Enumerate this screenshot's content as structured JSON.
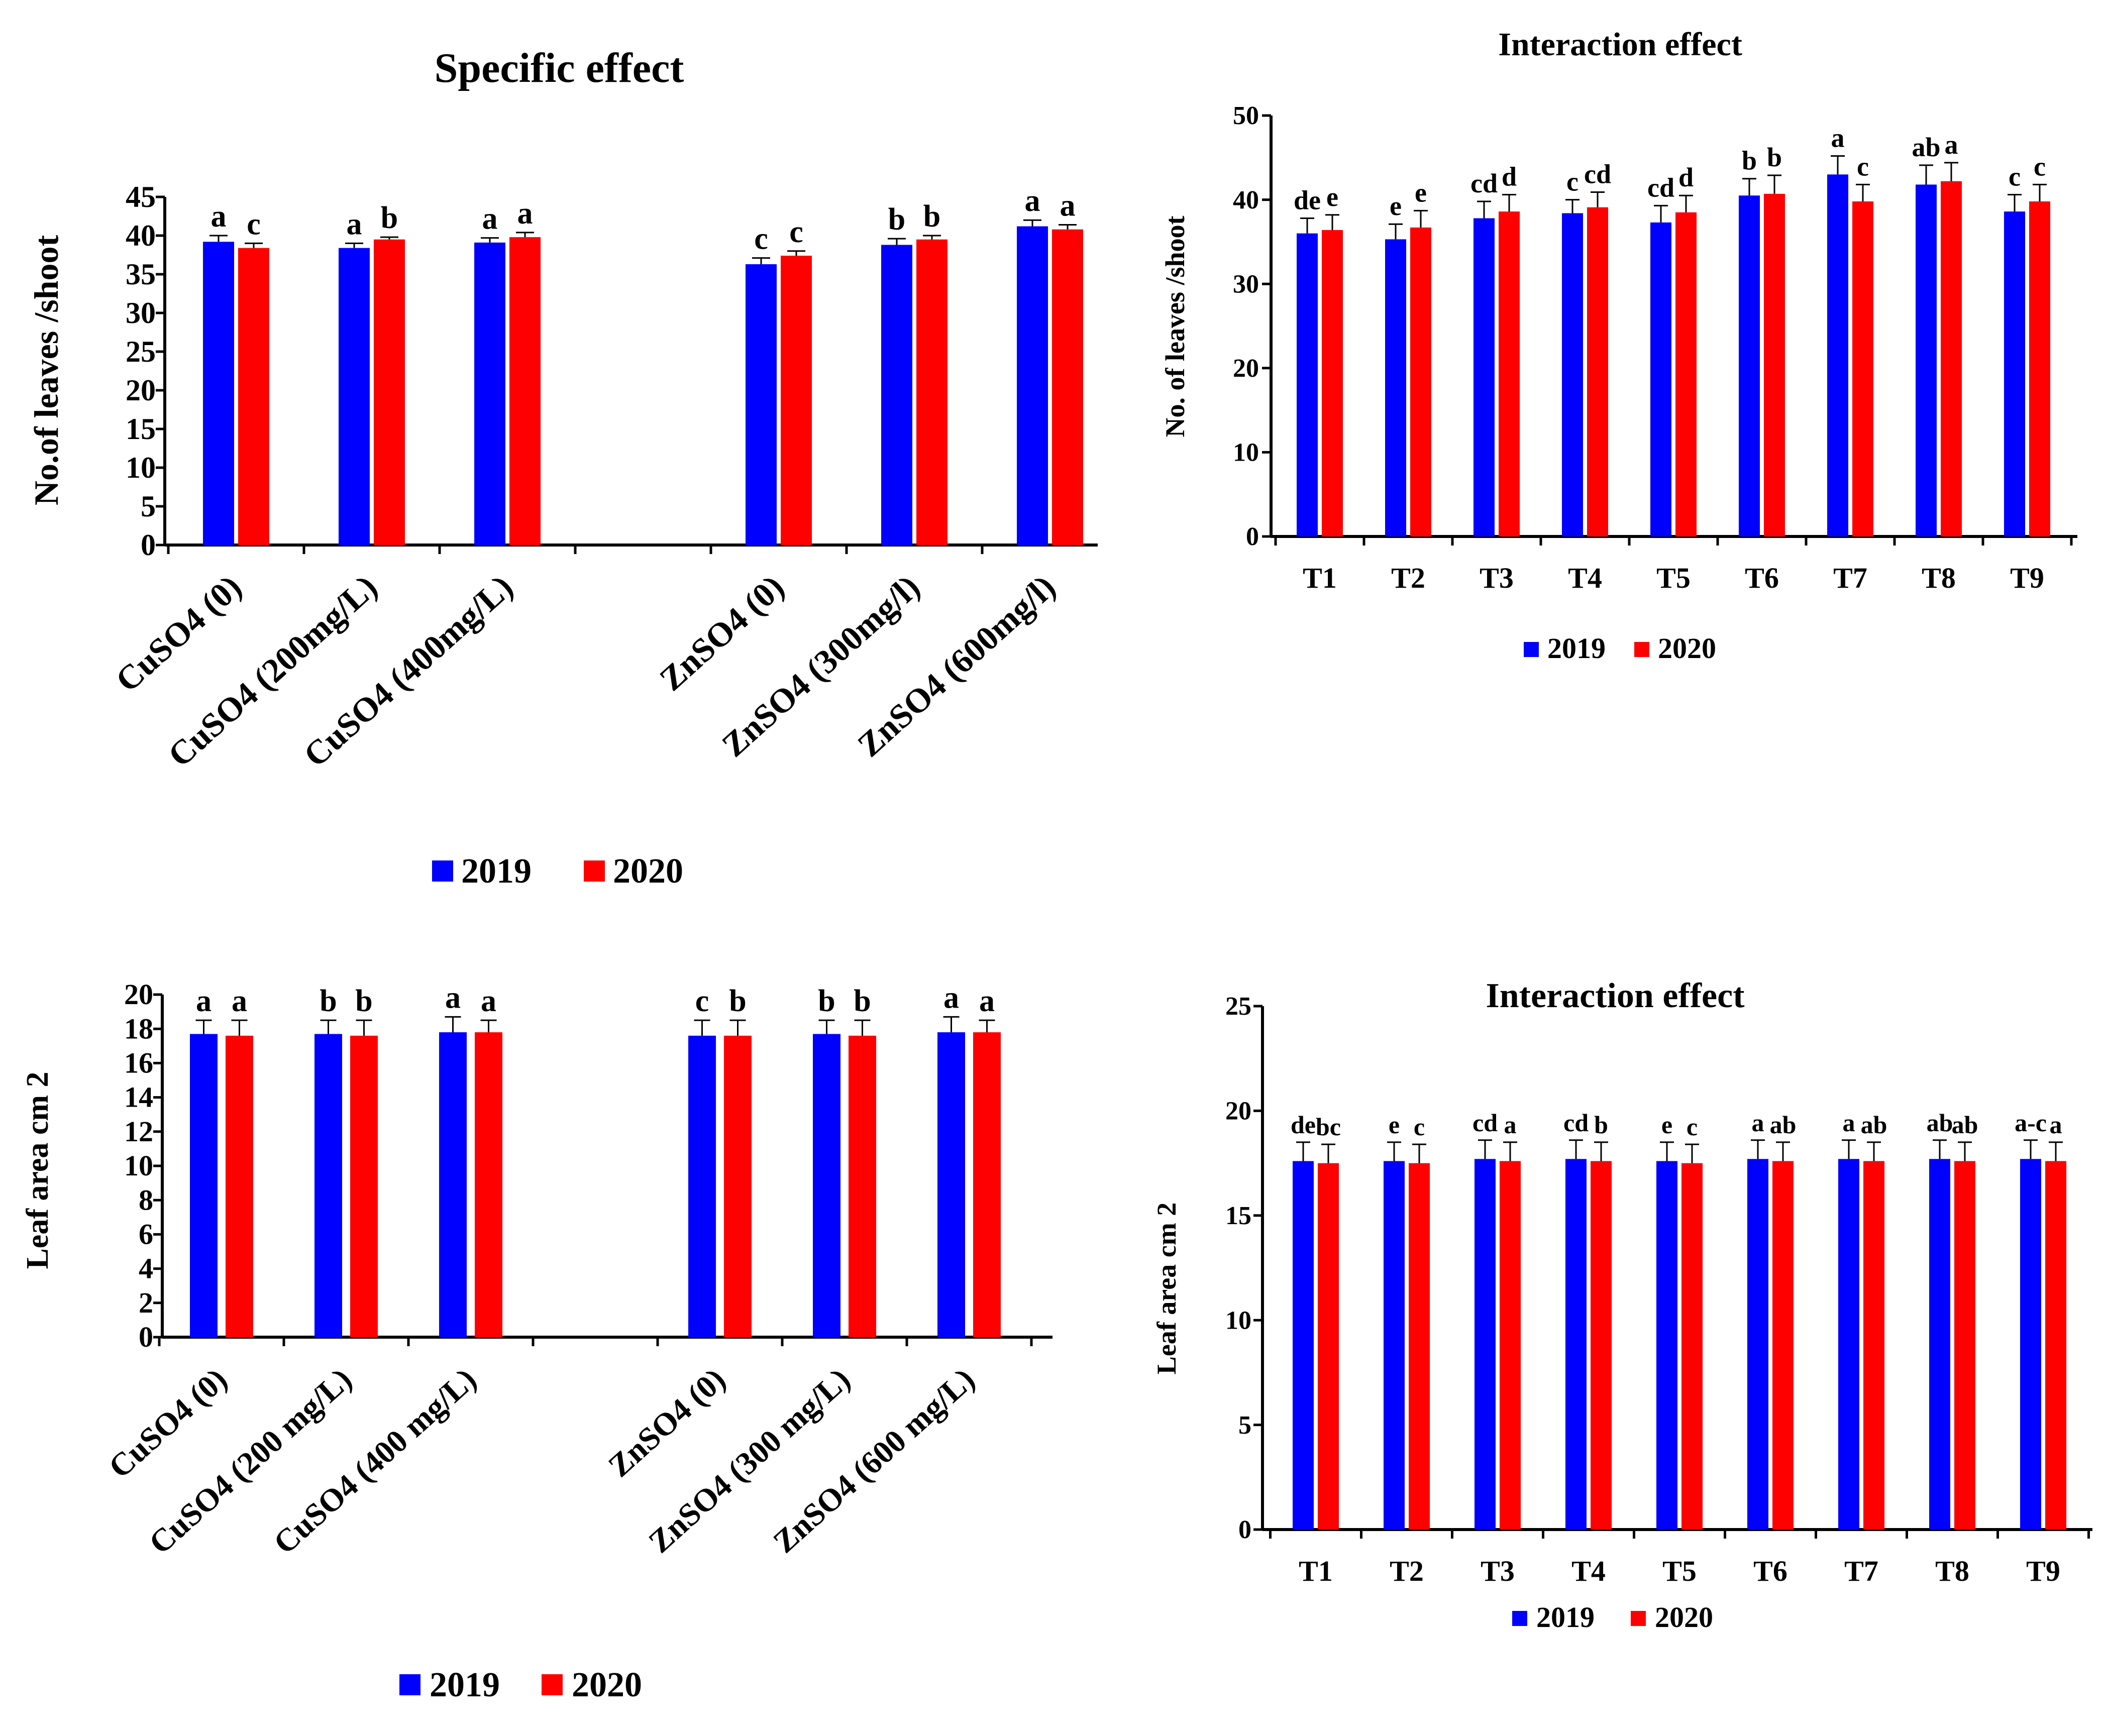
{
  "colors": {
    "series_2019": "#0000FF",
    "series_2020": "#FF0000",
    "axis": "#000000"
  },
  "chart_data": [
    {
      "id": "chart1",
      "type": "bar",
      "title": "Specific effect",
      "xlabel": "",
      "ylabel": "No.of leaves /shoot",
      "ylim": [
        0,
        45
      ],
      "yticks": [
        0,
        5,
        10,
        15,
        20,
        25,
        30,
        35,
        40,
        45
      ],
      "grid": false,
      "legend_position": "bottom",
      "categories": [
        "CuSO4 (0)",
        "CuSO4 (200mg/L)",
        "CuSO4 (400mg/L)",
        "",
        "ZnSO4 (0)",
        "ZnSO4 (300mg/l)",
        "ZnSO4 (600mg/l)"
      ],
      "series": [
        {
          "name": "2019",
          "values": [
            39.2,
            38.4,
            39.1,
            null,
            36.3,
            38.8,
            41.2
          ],
          "errors": [
            0.8,
            0.6,
            0.6,
            null,
            0.8,
            0.8,
            0.8
          ],
          "labels": [
            "a",
            "a",
            "a",
            "",
            "c",
            "b",
            "a"
          ]
        },
        {
          "name": "2020",
          "values": [
            38.4,
            39.5,
            39.8,
            null,
            37.4,
            39.5,
            40.8
          ],
          "errors": [
            0.6,
            0.3,
            0.6,
            null,
            0.6,
            0.5,
            0.6
          ],
          "labels": [
            "c",
            "b",
            "a",
            "",
            "c",
            "b",
            "a"
          ]
        }
      ]
    },
    {
      "id": "chart2",
      "type": "bar",
      "title": "Interaction effect",
      "xlabel": "",
      "ylabel": "No. of leaves /shoot",
      "ylim": [
        0,
        50
      ],
      "yticks": [
        0,
        10,
        20,
        30,
        40,
        50
      ],
      "grid": false,
      "legend_position": "bottom",
      "categories": [
        "T1",
        "T2",
        "T3",
        "T4",
        "T5",
        "T6",
        "T7",
        "T8",
        "T9"
      ],
      "series": [
        {
          "name": "2019",
          "values": [
            36.0,
            35.3,
            37.8,
            38.4,
            37.3,
            40.5,
            43.0,
            41.8,
            38.6
          ],
          "errors": [
            1.8,
            1.8,
            2.0,
            1.6,
            2.0,
            2.0,
            2.2,
            2.3,
            2.0
          ],
          "labels": [
            "de",
            "e",
            "cd",
            "c",
            "cd",
            "b",
            "a",
            "ab",
            "c"
          ]
        },
        {
          "name": "2020",
          "values": [
            36.4,
            36.7,
            38.6,
            39.1,
            38.5,
            40.7,
            39.8,
            42.2,
            39.8
          ],
          "errors": [
            1.8,
            2.0,
            2.0,
            1.8,
            2.0,
            2.2,
            2.0,
            2.2,
            2.0
          ],
          "labels": [
            "e",
            "e",
            "d",
            "cd",
            "d",
            "b",
            "c",
            "a",
            "c"
          ]
        }
      ]
    },
    {
      "id": "chart3",
      "type": "bar",
      "title": "",
      "xlabel": "",
      "ylabel": "Leaf area cm 2",
      "ylim": [
        0,
        20
      ],
      "yticks": [
        0,
        2,
        4,
        6,
        8,
        10,
        12,
        14,
        16,
        18,
        20
      ],
      "grid": false,
      "legend_position": "bottom",
      "categories": [
        "CuSO4 (0)",
        "CuSO4 (200 mg/L)",
        "CuSO4 (400 mg/L)",
        "",
        "ZnSO4 (0)",
        "ZnSO4 (300 mg/L)",
        "ZnSO4 (600 mg/L)"
      ],
      "series": [
        {
          "name": "2019",
          "values": [
            17.7,
            17.7,
            17.8,
            null,
            17.6,
            17.7,
            17.8
          ],
          "errors": [
            0.8,
            0.8,
            0.9,
            null,
            0.9,
            0.8,
            0.9
          ],
          "labels": [
            "a",
            "b",
            "a",
            "",
            "c",
            "b",
            "a"
          ]
        },
        {
          "name": "2020",
          "values": [
            17.6,
            17.6,
            17.8,
            null,
            17.6,
            17.6,
            17.8
          ],
          "errors": [
            0.9,
            0.9,
            0.7,
            null,
            0.9,
            0.9,
            0.7
          ],
          "labels": [
            "a",
            "b",
            "a",
            "",
            "b",
            "b",
            "a"
          ]
        }
      ]
    },
    {
      "id": "chart4",
      "type": "bar",
      "title": "Interaction effect",
      "xlabel": "",
      "ylabel": "Leaf area  cm 2",
      "ylim": [
        0,
        25
      ],
      "yticks": [
        0,
        5,
        10,
        15,
        20,
        25
      ],
      "grid": false,
      "legend_position": "bottom",
      "categories": [
        "T1",
        "T2",
        "T3",
        "T4",
        "T5",
        "T6",
        "T7",
        "T8",
        "T9"
      ],
      "series": [
        {
          "name": "2019",
          "values": [
            17.6,
            17.6,
            17.7,
            17.7,
            17.6,
            17.7,
            17.7,
            17.7,
            17.7
          ],
          "errors": [
            0.9,
            0.9,
            0.9,
            0.9,
            0.9,
            0.9,
            0.9,
            0.9,
            0.9
          ],
          "labels": [
            "de",
            "e",
            "cd",
            "cd",
            "e",
            "a",
            "a",
            "ab",
            "a-c"
          ]
        },
        {
          "name": "2020",
          "values": [
            17.5,
            17.5,
            17.6,
            17.6,
            17.5,
            17.6,
            17.6,
            17.6,
            17.6
          ],
          "errors": [
            0.9,
            0.9,
            0.9,
            0.9,
            0.9,
            0.9,
            0.9,
            0.9,
            0.9
          ],
          "labels": [
            "bc",
            "c",
            "a",
            "b",
            "c",
            "ab",
            "ab",
            "ab",
            "a"
          ]
        }
      ]
    }
  ]
}
